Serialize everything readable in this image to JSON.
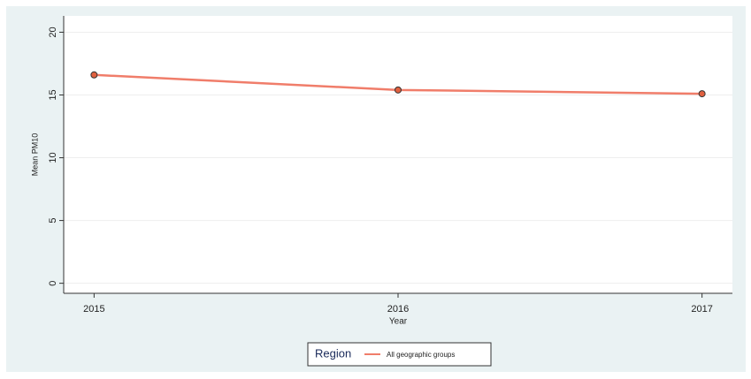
{
  "chart_data": {
    "type": "line",
    "x": [
      2015,
      2016,
      2017
    ],
    "series": [
      {
        "name": "All geographic groups",
        "color": "#f07d6a",
        "marker_color": "#e0603f",
        "values": [
          16.6,
          15.4,
          15.1
        ]
      }
    ],
    "xlabel": "Year",
    "ylabel": "Mean PM10",
    "xlim": [
      2014.9,
      2017.1
    ],
    "xticks": [
      2015,
      2016,
      2017
    ],
    "ylim": [
      -0.8,
      21.3
    ],
    "yticks": [
      0,
      5,
      10,
      15,
      20
    ],
    "grid": true,
    "legend_title": "Region",
    "legend_position": "bottom"
  }
}
